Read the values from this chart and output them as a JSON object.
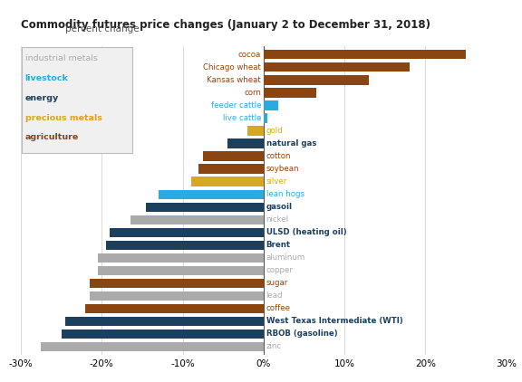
{
  "title": "Commodity futures price changes (January 2 to December 31, 2018)",
  "subtitle": "percent change",
  "commodities": [
    {
      "name": "cocoa",
      "value": 25.0,
      "category": "agriculture",
      "bold": false
    },
    {
      "name": "Chicago wheat",
      "value": 18.0,
      "category": "agriculture",
      "bold": false
    },
    {
      "name": "Kansas wheat",
      "value": 13.0,
      "category": "agriculture",
      "bold": false
    },
    {
      "name": "corn",
      "value": 6.5,
      "category": "agriculture",
      "bold": false
    },
    {
      "name": "feeder cattle",
      "value": 1.8,
      "category": "livestock",
      "bold": false
    },
    {
      "name": "live cattle",
      "value": 0.5,
      "category": "livestock",
      "bold": false
    },
    {
      "name": "gold",
      "value": -2.0,
      "category": "precious_metals",
      "bold": false
    },
    {
      "name": "natural gas",
      "value": -4.5,
      "category": "energy",
      "bold": true
    },
    {
      "name": "cotton",
      "value": -7.5,
      "category": "agriculture",
      "bold": false
    },
    {
      "name": "soybean",
      "value": -8.0,
      "category": "agriculture",
      "bold": false
    },
    {
      "name": "silver",
      "value": -9.0,
      "category": "precious_metals",
      "bold": false
    },
    {
      "name": "lean hogs",
      "value": -13.0,
      "category": "livestock",
      "bold": false
    },
    {
      "name": "gasoil",
      "value": -14.5,
      "category": "energy",
      "bold": true
    },
    {
      "name": "nickel",
      "value": -16.5,
      "category": "industrial_metals",
      "bold": false
    },
    {
      "name": "ULSD (heating oil)",
      "value": -19.0,
      "category": "energy",
      "bold": true
    },
    {
      "name": "Brent",
      "value": -19.5,
      "category": "energy",
      "bold": true
    },
    {
      "name": "aluminum",
      "value": -20.5,
      "category": "industrial_metals",
      "bold": false
    },
    {
      "name": "copper",
      "value": -20.5,
      "category": "industrial_metals",
      "bold": false
    },
    {
      "name": "sugar",
      "value": -21.5,
      "category": "agriculture",
      "bold": false
    },
    {
      "name": "lead",
      "value": -21.5,
      "category": "industrial_metals",
      "bold": false
    },
    {
      "name": "coffee",
      "value": -22.0,
      "category": "agriculture",
      "bold": false
    },
    {
      "name": "West Texas Intermediate (WTI)",
      "value": -24.5,
      "category": "energy",
      "bold": true
    },
    {
      "name": "RBOB (gasoline)",
      "value": -25.0,
      "category": "energy",
      "bold": true
    },
    {
      "name": "zinc",
      "value": -27.5,
      "category": "industrial_metals",
      "bold": false
    }
  ],
  "category_colors": {
    "agriculture": "#8B4513",
    "livestock": "#29ABE2",
    "energy": "#1C3F5E",
    "precious_metals": "#DAA520",
    "industrial_metals": "#AAAAAA"
  },
  "category_label_colors": {
    "agriculture": "#8B4513",
    "livestock": "#29ABE2",
    "energy": "#1C3F5E",
    "precious_metals": "#DAA520",
    "industrial_metals": "#AAAAAA"
  },
  "legend_items": [
    {
      "label": "industrial metals",
      "color": "#AAAAAA",
      "bold": false
    },
    {
      "label": "livestock",
      "color": "#29ABE2",
      "bold": true
    },
    {
      "label": "energy",
      "color": "#1C3F5E",
      "bold": true
    },
    {
      "label": "precious metals",
      "color": "#DAA520",
      "bold": true
    },
    {
      "label": "agriculture",
      "color": "#8B4513",
      "bold": true
    }
  ],
  "xlim": [
    -30,
    30
  ],
  "xticks": [
    -30,
    -20,
    -10,
    0,
    10,
    20,
    30
  ],
  "xtick_labels": [
    "-30%",
    "-20%",
    "-10%",
    "0%",
    "10%",
    "20%",
    "30%"
  ],
  "background_color": "#FFFFFF",
  "bar_height": 0.72
}
